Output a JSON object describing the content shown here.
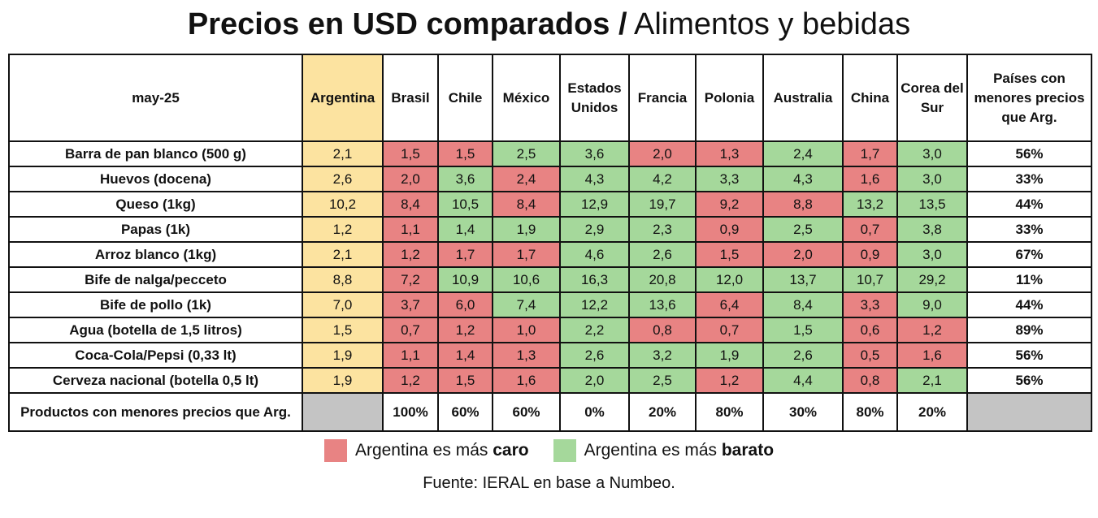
{
  "title_bold": "Precios en USD comparados /",
  "title_rest": " Alimentos y bebidas",
  "colors": {
    "argentina": "#fce3a0",
    "caro": "#e88383",
    "barato": "#a5d89b",
    "gray": "#c4c4c4"
  },
  "chart_data": {
    "type": "table",
    "corner": "may-25",
    "columns": [
      "Argentina",
      "Brasil",
      "Chile",
      "México",
      "Estados Unidos",
      "Francia",
      "Polonia",
      "Australia",
      "China",
      "Corea del Sur"
    ],
    "last_column": "Países con menores precios que Arg.",
    "rows": [
      {
        "label": "Barra de pan blanco (500 g)",
        "values": [
          "2,1",
          "1,5",
          "1,5",
          "2,5",
          "3,6",
          "2,0",
          "1,3",
          "2,4",
          "1,7",
          "3,0"
        ],
        "status": [
          "a",
          "r",
          "r",
          "g",
          "g",
          "r",
          "r",
          "g",
          "r",
          "g"
        ],
        "share": "56%"
      },
      {
        "label": "Huevos (docena)",
        "values": [
          "2,6",
          "2,0",
          "3,6",
          "2,4",
          "4,3",
          "4,2",
          "3,3",
          "4,3",
          "1,6",
          "3,0"
        ],
        "status": [
          "a",
          "r",
          "g",
          "r",
          "g",
          "g",
          "g",
          "g",
          "r",
          "g"
        ],
        "share": "33%"
      },
      {
        "label": "Queso (1kg)",
        "values": [
          "10,2",
          "8,4",
          "10,5",
          "8,4",
          "12,9",
          "19,7",
          "9,2",
          "8,8",
          "13,2",
          "13,5"
        ],
        "status": [
          "a",
          "r",
          "g",
          "r",
          "g",
          "g",
          "r",
          "r",
          "g",
          "g"
        ],
        "share": "44%"
      },
      {
        "label": "Papas (1k)",
        "values": [
          "1,2",
          "1,1",
          "1,4",
          "1,9",
          "2,9",
          "2,3",
          "0,9",
          "2,5",
          "0,7",
          "3,8"
        ],
        "status": [
          "a",
          "r",
          "g",
          "g",
          "g",
          "g",
          "r",
          "g",
          "r",
          "g"
        ],
        "share": "33%"
      },
      {
        "label": "Arroz blanco (1kg)",
        "values": [
          "2,1",
          "1,2",
          "1,7",
          "1,7",
          "4,6",
          "2,6",
          "1,5",
          "2,0",
          "0,9",
          "3,0"
        ],
        "status": [
          "a",
          "r",
          "r",
          "r",
          "g",
          "g",
          "r",
          "r",
          "r",
          "g"
        ],
        "share": "67%"
      },
      {
        "label": "Bife de nalga/pecceto",
        "values": [
          "8,8",
          "7,2",
          "10,9",
          "10,6",
          "16,3",
          "20,8",
          "12,0",
          "13,7",
          "10,7",
          "29,2"
        ],
        "status": [
          "a",
          "r",
          "g",
          "g",
          "g",
          "g",
          "g",
          "g",
          "g",
          "g"
        ],
        "share": "11%"
      },
      {
        "label": "Bife de pollo (1k)",
        "values": [
          "7,0",
          "3,7",
          "6,0",
          "7,4",
          "12,2",
          "13,6",
          "6,4",
          "8,4",
          "3,3",
          "9,0"
        ],
        "status": [
          "a",
          "r",
          "r",
          "g",
          "g",
          "g",
          "r",
          "g",
          "r",
          "g"
        ],
        "share": "44%"
      },
      {
        "label": "Agua (botella de 1,5 litros)",
        "values": [
          "1,5",
          "0,7",
          "1,2",
          "1,0",
          "2,2",
          "0,8",
          "0,7",
          "1,5",
          "0,6",
          "1,2"
        ],
        "status": [
          "a",
          "r",
          "r",
          "r",
          "g",
          "r",
          "r",
          "g",
          "r",
          "r"
        ],
        "share": "89%"
      },
      {
        "label": "Coca-Cola/Pepsi (0,33 lt)",
        "values": [
          "1,9",
          "1,1",
          "1,4",
          "1,3",
          "2,6",
          "3,2",
          "1,9",
          "2,6",
          "0,5",
          "1,6"
        ],
        "status": [
          "a",
          "r",
          "r",
          "r",
          "g",
          "g",
          "g",
          "g",
          "r",
          "r"
        ],
        "share": "56%"
      },
      {
        "label": "Cerveza nacional (botella 0,5 lt)",
        "values": [
          "1,9",
          "1,2",
          "1,5",
          "1,6",
          "2,0",
          "2,5",
          "1,2",
          "4,4",
          "0,8",
          "2,1"
        ],
        "status": [
          "a",
          "r",
          "r",
          "r",
          "g",
          "g",
          "r",
          "g",
          "r",
          "g"
        ],
        "share": "56%"
      }
    ],
    "footer_label": "Productos con menores precios que Arg.",
    "footer_values": [
      "",
      "100%",
      "60%",
      "60%",
      "0%",
      "20%",
      "80%",
      "30%",
      "80%",
      "20%"
    ]
  },
  "legend": {
    "caro_text": "Argentina es más ",
    "caro_bold": "caro",
    "barato_text": "Argentina es más ",
    "barato_bold": "barato"
  },
  "source": "Fuente: IERAL en base a Numbeo."
}
